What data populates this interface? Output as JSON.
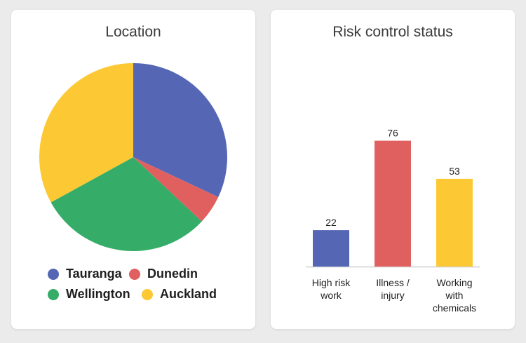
{
  "chart_data": [
    {
      "type": "pie",
      "title": "Location",
      "categories": [
        "Tauranga",
        "Dunedin",
        "Wellington",
        "Auckland"
      ],
      "values": [
        32,
        5,
        30,
        33
      ],
      "colors": [
        "#5567b4",
        "#e06060",
        "#35ad69",
        "#fcc934"
      ],
      "legend_position": "bottom"
    },
    {
      "type": "bar",
      "title": "Risk control status",
      "categories": [
        "High risk work",
        "Illness / injury",
        "Working with chemicals"
      ],
      "category_lines": [
        [
          "High risk",
          "work"
        ],
        [
          "Illness /",
          "injury"
        ],
        [
          "Working",
          "with",
          "chemicals"
        ]
      ],
      "values": [
        22,
        76,
        53
      ],
      "colors": [
        "#5567b4",
        "#e06060",
        "#fcc934"
      ],
      "value_labels": [
        "22",
        "76",
        "53"
      ],
      "ylim": [
        0,
        100
      ],
      "grid": false
    }
  ]
}
